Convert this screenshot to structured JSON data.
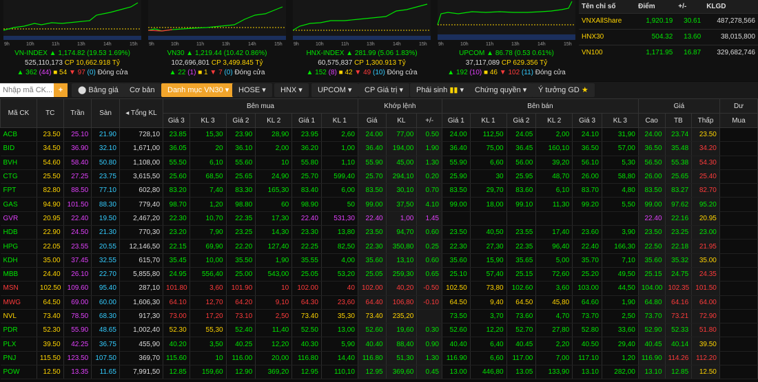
{
  "indices": [
    {
      "name": "VN-INDEX",
      "value": "1,174.82",
      "change": "(19.53 1.69%)",
      "vol": "525,110,173",
      "cp": "CP 10,662.918 Tỷ",
      "up": "362",
      "ceil": "(44)",
      "ref": "54",
      "dn": "97",
      "flr": "(0)",
      "status": "Đóng cửa",
      "ticks": [
        "9h",
        "10h",
        "11h",
        "13h",
        "14h",
        "15h"
      ]
    },
    {
      "name": "VN30",
      "value": "1,219.44",
      "change": "(10.42 0.86%)",
      "vol": "102,696,801",
      "cp": "CP 3,499.845 Tỷ",
      "up": "22",
      "ceil": "(1)",
      "ref": "1",
      "dn": "7",
      "flr": "(0)",
      "status": "Đóng cửa",
      "ticks": [
        "9h",
        "10h",
        "11h",
        "13h",
        "14h",
        "15h"
      ]
    },
    {
      "name": "HNX-INDEX",
      "value": "281.99",
      "change": "(5.06 1.83%)",
      "vol": "60,575,837",
      "cp": "CP 1,300.913 Tỷ",
      "up": "152",
      "ceil": "(8)",
      "ref": "42",
      "dn": "49",
      "flr": "(10)",
      "status": "Đóng cửa",
      "ticks": [
        "9h",
        "10h",
        "11h",
        "13h",
        "14h",
        "15h"
      ]
    },
    {
      "name": "UPCOM",
      "value": "86.78",
      "change": "(0.53 0.61%)",
      "vol": "37,117,089",
      "cp": "CP 629.356 Tỷ",
      "up": "192",
      "ceil": "(10)",
      "ref": "46",
      "dn": "102",
      "flr": "(11)",
      "status": "Đóng cửa",
      "ticks": [
        "9h",
        "10h",
        "11h",
        "13h",
        "14h",
        "15h"
      ]
    }
  ],
  "summary": {
    "headers": [
      "Tên chỉ số",
      "Điểm",
      "+/-",
      "KLGD"
    ],
    "rows": [
      [
        "VNXAllShare",
        "1,920.19",
        "30.61",
        "487,278,566"
      ],
      [
        "HNX30",
        "504.32",
        "13.60",
        "38,015,800"
      ],
      [
        "VN100",
        "1,171.95",
        "16.87",
        "329,682,746"
      ]
    ]
  },
  "toolbar": {
    "search_placeholder": "Nhập mã CK...",
    "add": "+",
    "price_toggle": "Bảng giá",
    "tabs": [
      "Cơ bản",
      "Danh mục VN30",
      "HOSE",
      "HNX",
      "UPCOM",
      "CP Giá trị",
      "Phái sinh",
      "Chứng quyền",
      "Ý tưởng GD"
    ]
  },
  "headers": {
    "sym": "Mã CK",
    "tc": "TC",
    "tran": "Trần",
    "san": "Sàn",
    "tkl": "Tổng KL",
    "benmua": "Bên mua",
    "khop": "Khớp lệnh",
    "benban": "Bên bán",
    "gia": "Giá",
    "du": "Dư",
    "sub": [
      "Giá 3",
      "KL 3",
      "Giá 2",
      "KL 2",
      "Giá 1",
      "KL 1",
      "Giá",
      "KL",
      "+/-",
      "Giá 1",
      "KL 1",
      "Giá 2",
      "KL 2",
      "Giá 3",
      "KL 3",
      "Cao",
      "TB",
      "Thấp",
      "Mua"
    ]
  },
  "colors": {
    "up": "#00e600",
    "down": "#ff3b3b",
    "ref": "#ffd400",
    "ceil": "#e040fb",
    "floor": "#33ccff"
  },
  "rows": [
    [
      "ACB",
      "23.50",
      "25.10",
      "21.90",
      "728,10",
      "23.85",
      "15,30",
      "23.90",
      "28,90",
      "23.95",
      "2,60",
      "24.00",
      "77,00",
      "0.50",
      "24.00",
      "112,50",
      "24.05",
      "2,00",
      "24.10",
      "31,90",
      "24.00",
      "23.74",
      "23.50"
    ],
    [
      "BID",
      "34.50",
      "36.90",
      "32.10",
      "1,671,00",
      "36.05",
      "20",
      "36.10",
      "2,00",
      "36.20",
      "1,00",
      "36.40",
      "194,00",
      "1.90",
      "36.40",
      "75,00",
      "36.45",
      "160,10",
      "36.50",
      "57,00",
      "36.50",
      "35.48",
      "34.20"
    ],
    [
      "BVH",
      "54.60",
      "58.40",
      "50.80",
      "1,108,00",
      "55.50",
      "6,10",
      "55.60",
      "10",
      "55.80",
      "1,10",
      "55.90",
      "45,00",
      "1.30",
      "55.90",
      "6,60",
      "56.00",
      "39,20",
      "56.10",
      "5,30",
      "56.50",
      "55.38",
      "54.30"
    ],
    [
      "CTG",
      "25.50",
      "27.25",
      "23.75",
      "3,615,50",
      "25.60",
      "68,50",
      "25.65",
      "24,90",
      "25.70",
      "599,40",
      "25.70",
      "294,10",
      "0.20",
      "25.90",
      "30",
      "25.95",
      "48,70",
      "26.00",
      "58,80",
      "26.00",
      "25.65",
      "25.40"
    ],
    [
      "FPT",
      "82.80",
      "88.50",
      "77.10",
      "602,80",
      "83.20",
      "7,40",
      "83.30",
      "165,30",
      "83.40",
      "6,00",
      "83.50",
      "30,10",
      "0.70",
      "83.50",
      "29,70",
      "83.60",
      "6,10",
      "83.70",
      "4,80",
      "83.50",
      "83.27",
      "82.70"
    ],
    [
      "GAS",
      "94.90",
      "101.50",
      "88.30",
      "779,40",
      "98.70",
      "1,20",
      "98.80",
      "60",
      "98.90",
      "50",
      "99.00",
      "37,50",
      "4.10",
      "99.00",
      "18,00",
      "99.10",
      "11,30",
      "99.20",
      "5,50",
      "99.00",
      "97.62",
      "95.20"
    ],
    [
      "GVR",
      "20.95",
      "22.40",
      "19.50",
      "2,467,20",
      "22.30",
      "10,70",
      "22.35",
      "17,30",
      "22.40",
      "531,30",
      "22.40",
      "1,00",
      "1.45",
      "",
      "",
      "",
      "",
      "",
      "",
      "22.40",
      "22.16",
      "20.95"
    ],
    [
      "HDB",
      "22.90",
      "24.50",
      "21.30",
      "770,30",
      "23.20",
      "7,90",
      "23.25",
      "14,30",
      "23.30",
      "13,80",
      "23.50",
      "94,70",
      "0.60",
      "23.50",
      "40,50",
      "23.55",
      "17,40",
      "23.60",
      "3,90",
      "23.50",
      "23.25",
      "23.00"
    ],
    [
      "HPG",
      "22.05",
      "23.55",
      "20.55",
      "12,146,50",
      "22.15",
      "69,90",
      "22.20",
      "127,40",
      "22.25",
      "82,50",
      "22.30",
      "350,80",
      "0.25",
      "22.30",
      "27,30",
      "22.35",
      "96,40",
      "22.40",
      "166,30",
      "22.50",
      "22.18",
      "21.95"
    ],
    [
      "KDH",
      "35.00",
      "37.45",
      "32.55",
      "615,70",
      "35.45",
      "10,00",
      "35.50",
      "1,90",
      "35.55",
      "4,00",
      "35.60",
      "13,10",
      "0.60",
      "35.60",
      "15,90",
      "35.65",
      "5,00",
      "35.70",
      "7,10",
      "35.60",
      "35.32",
      "35.00"
    ],
    [
      "MBB",
      "24.40",
      "26.10",
      "22.70",
      "5,855,80",
      "24.95",
      "556,40",
      "25.00",
      "543,00",
      "25.05",
      "53,20",
      "25.05",
      "259,30",
      "0.65",
      "25.10",
      "57,40",
      "25.15",
      "72,60",
      "25.20",
      "49,50",
      "25.15",
      "24.75",
      "24.35"
    ],
    [
      "MSN",
      "102.50",
      "109.60",
      "95.40",
      "287,10",
      "101.80",
      "3,60",
      "101.90",
      "10",
      "102.00",
      "40",
      "102.00",
      "40,20",
      "-0.50",
      "102.50",
      "73,80",
      "102.60",
      "3,60",
      "103.00",
      "44,50",
      "104.00",
      "102.35",
      "101.50"
    ],
    [
      "MWG",
      "64.50",
      "69.00",
      "60.00",
      "1,606,30",
      "64.10",
      "12,70",
      "64.20",
      "9,10",
      "64.30",
      "23,60",
      "64.40",
      "106,80",
      "-0.10",
      "64.50",
      "9,40",
      "64.50",
      "45,80",
      "64.60",
      "1,90",
      "64.80",
      "64.16",
      "64.00"
    ],
    [
      "NVL",
      "73.40",
      "78.50",
      "68.30",
      "917,30",
      "73.00",
      "17,20",
      "73.10",
      "2,50",
      "73.40",
      "35,30",
      "73.40",
      "235,20",
      "",
      "73.50",
      "3,70",
      "73.60",
      "4,70",
      "73.70",
      "2,50",
      "73.70",
      "73.21",
      "72.90"
    ],
    [
      "PDR",
      "52.30",
      "55.90",
      "48.65",
      "1,002,40",
      "52.30",
      "55,30",
      "52.40",
      "11,40",
      "52.50",
      "13,00",
      "52.60",
      "19,60",
      "0.30",
      "52.60",
      "12,20",
      "52.70",
      "27,80",
      "52.80",
      "33,60",
      "52.90",
      "52.33",
      "51.80"
    ],
    [
      "PLX",
      "39.50",
      "42.25",
      "36.75",
      "455,90",
      "40.20",
      "3,50",
      "40.25",
      "12,20",
      "40.30",
      "5,90",
      "40.40",
      "88,40",
      "0.90",
      "40.40",
      "6,40",
      "40.45",
      "2,20",
      "40.50",
      "29,40",
      "40.45",
      "40.14",
      "39.50"
    ],
    [
      "PNJ",
      "115.50",
      "123.50",
      "107.50",
      "369,70",
      "115.60",
      "10",
      "116.00",
      "20,00",
      "116.80",
      "14,40",
      "116.80",
      "51,30",
      "1.30",
      "116.90",
      "6,60",
      "117.00",
      "7,00",
      "117.10",
      "1,20",
      "116.90",
      "114.26",
      "112.20"
    ],
    [
      "POW",
      "12.50",
      "13.35",
      "11.65",
      "7,991,50",
      "12.85",
      "159,60",
      "12.90",
      "369,20",
      "12.95",
      "110,10",
      "12.95",
      "369,60",
      "0.45",
      "13.00",
      "446,80",
      "13.05",
      "133,90",
      "13.10",
      "282,00",
      "13.10",
      "12.85",
      "12.50"
    ]
  ]
}
